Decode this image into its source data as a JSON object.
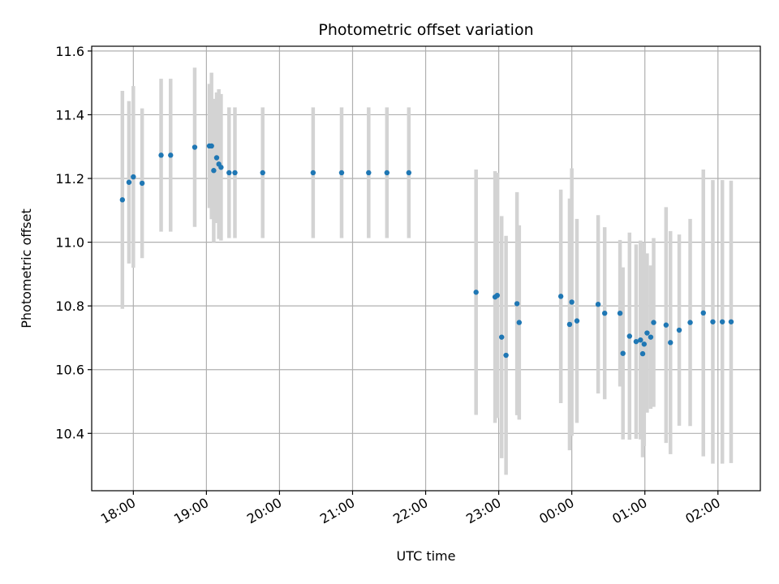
{
  "chart_data": {
    "type": "scatter",
    "title": "Photometric offset variation",
    "xlabel": "UTC time",
    "ylabel": "Photometric offset",
    "x_unit": "hours since 00:00 (negative = previous day)",
    "xlim": [
      -6.57,
      2.58
    ],
    "ylim": [
      10.22,
      11.615
    ],
    "grid": true,
    "x_ticks": [
      {
        "value": -6,
        "label": "18:00"
      },
      {
        "value": -5,
        "label": "19:00"
      },
      {
        "value": -4,
        "label": "20:00"
      },
      {
        "value": -3,
        "label": "21:00"
      },
      {
        "value": -2,
        "label": "22:00"
      },
      {
        "value": -1,
        "label": "23:00"
      },
      {
        "value": 0,
        "label": "00:00"
      },
      {
        "value": 1,
        "label": "01:00"
      },
      {
        "value": 2,
        "label": "02:00"
      }
    ],
    "y_ticks": [
      {
        "value": 10.4,
        "label": "10.4"
      },
      {
        "value": 10.6,
        "label": "10.6"
      },
      {
        "value": 10.8,
        "label": "10.8"
      },
      {
        "value": 11.0,
        "label": "11.0"
      },
      {
        "value": 11.2,
        "label": "11.2"
      },
      {
        "value": 11.4,
        "label": "11.4"
      },
      {
        "value": 11.6,
        "label": "11.6"
      }
    ],
    "series": [
      {
        "name": "photometric offset",
        "color": "#1f77b4",
        "error_color": "#d3d3d3",
        "points": [
          {
            "x": -6.15,
            "y": 11.133,
            "err": 0.342
          },
          {
            "x": -6.06,
            "y": 11.188,
            "err": 0.255
          },
          {
            "x": -6.0,
            "y": 11.205,
            "err": 0.285
          },
          {
            "x": -5.88,
            "y": 11.185,
            "err": 0.235
          },
          {
            "x": -5.62,
            "y": 11.273,
            "err": 0.24
          },
          {
            "x": -5.49,
            "y": 11.273,
            "err": 0.24
          },
          {
            "x": -5.16,
            "y": 11.298,
            "err": 0.25
          },
          {
            "x": -4.96,
            "y": 11.302,
            "err": 0.195
          },
          {
            "x": -4.93,
            "y": 11.302,
            "err": 0.23
          },
          {
            "x": -4.9,
            "y": 11.225,
            "err": 0.225
          },
          {
            "x": -4.86,
            "y": 11.265,
            "err": 0.205
          },
          {
            "x": -4.83,
            "y": 11.245,
            "err": 0.235
          },
          {
            "x": -4.8,
            "y": 11.235,
            "err": 0.23
          },
          {
            "x": -4.69,
            "y": 11.218,
            "err": 0.205
          },
          {
            "x": -4.61,
            "y": 11.218,
            "err": 0.205
          },
          {
            "x": -4.23,
            "y": 11.218,
            "err": 0.205
          },
          {
            "x": -3.54,
            "y": 11.218,
            "err": 0.205
          },
          {
            "x": -3.15,
            "y": 11.218,
            "err": 0.205
          },
          {
            "x": -2.78,
            "y": 11.218,
            "err": 0.205
          },
          {
            "x": -2.53,
            "y": 11.218,
            "err": 0.205
          },
          {
            "x": -2.23,
            "y": 11.218,
            "err": 0.205
          },
          {
            "x": -1.31,
            "y": 10.843,
            "err": 0.385
          },
          {
            "x": -1.05,
            "y": 10.828,
            "err": 0.395
          },
          {
            "x": -1.02,
            "y": 10.833,
            "err": 0.385
          },
          {
            "x": -0.96,
            "y": 10.702,
            "err": 0.38
          },
          {
            "x": -0.9,
            "y": 10.645,
            "err": 0.375
          },
          {
            "x": -0.75,
            "y": 10.807,
            "err": 0.35
          },
          {
            "x": -0.72,
            "y": 10.748,
            "err": 0.305
          },
          {
            "x": -0.15,
            "y": 10.83,
            "err": 0.335
          },
          {
            "x": -0.03,
            "y": 10.742,
            "err": 0.395
          },
          {
            "x": 0.0,
            "y": 10.812,
            "err": 0.42
          },
          {
            "x": 0.07,
            "y": 10.753,
            "err": 0.32
          },
          {
            "x": 0.36,
            "y": 10.805,
            "err": 0.28
          },
          {
            "x": 0.45,
            "y": 10.777,
            "err": 0.27
          },
          {
            "x": 0.66,
            "y": 10.777,
            "err": 0.23
          },
          {
            "x": 0.7,
            "y": 10.651,
            "err": 0.27
          },
          {
            "x": 0.79,
            "y": 10.705,
            "err": 0.325
          },
          {
            "x": 0.88,
            "y": 10.688,
            "err": 0.305
          },
          {
            "x": 0.94,
            "y": 10.693,
            "err": 0.312
          },
          {
            "x": 0.97,
            "y": 10.65,
            "err": 0.325
          },
          {
            "x": 0.99,
            "y": 10.68,
            "err": 0.32
          },
          {
            "x": 1.03,
            "y": 10.715,
            "err": 0.25
          },
          {
            "x": 1.08,
            "y": 10.702,
            "err": 0.225
          },
          {
            "x": 1.12,
            "y": 10.748,
            "err": 0.265
          },
          {
            "x": 1.29,
            "y": 10.74,
            "err": 0.37
          },
          {
            "x": 1.35,
            "y": 10.685,
            "err": 0.35
          },
          {
            "x": 1.47,
            "y": 10.724,
            "err": 0.3
          },
          {
            "x": 1.62,
            "y": 10.748,
            "err": 0.325
          },
          {
            "x": 1.8,
            "y": 10.778,
            "err": 0.45
          },
          {
            "x": 1.93,
            "y": 10.75,
            "err": 0.445
          },
          {
            "x": 2.06,
            "y": 10.75,
            "err": 0.445
          },
          {
            "x": 2.18,
            "y": 10.75,
            "err": 0.443
          }
        ]
      }
    ]
  }
}
